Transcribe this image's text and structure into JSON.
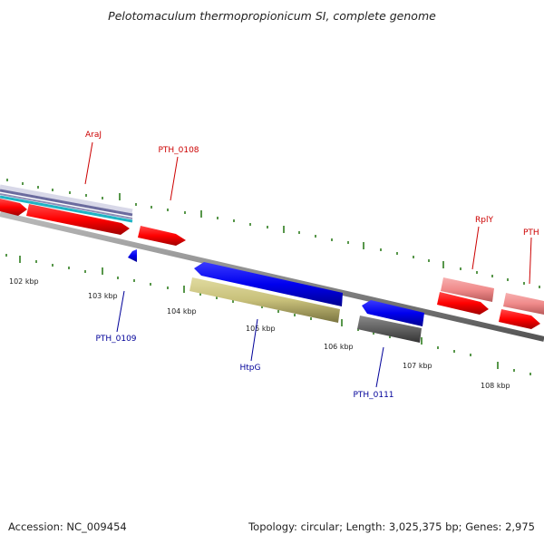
{
  "title": "Pelotomaculum thermopropionicum SI, complete genome",
  "accession": "Accession: NC_009454",
  "summary": "Topology: circular; Length: 3,025,375 bp; Genes: 2,975",
  "colors": {
    "forward_cds": "#ff0000",
    "forward_rna": "#f08a8a",
    "reverse_cds": "#0000ee",
    "reverse_other": "#bdb76b",
    "reverse_gray": "#555555",
    "backbone": "#888888",
    "tick": "#2e7d1e"
  },
  "kbp_labels": [
    "102 kbp",
    "103 kbp",
    "104 kbp",
    "105 kbp",
    "106 kbp",
    "107 kbp",
    "108 kbp"
  ],
  "forward_labels": [
    "AraJ",
    "PTH_0108",
    "RplY",
    "PTH"
  ],
  "reverse_labels": [
    "PTH_0109",
    "HtpG",
    "PTH_0111"
  ]
}
